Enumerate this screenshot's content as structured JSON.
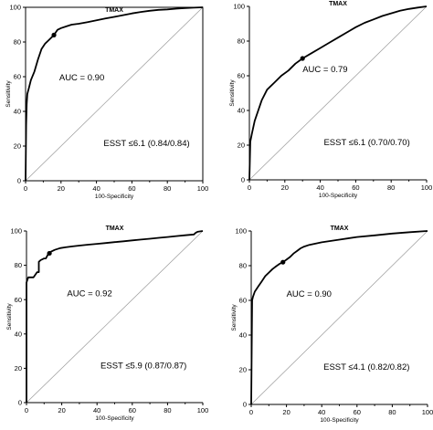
{
  "chart_data": [
    {
      "type": "line",
      "title": "TMAX",
      "xlabel": "100-Specificity",
      "ylabel": "Sensitivity",
      "xlim": [
        0,
        100
      ],
      "ylim": [
        0,
        100
      ],
      "xticks": [
        "0",
        "20",
        "40",
        "60",
        "80",
        "100"
      ],
      "yticks": [
        "0",
        "20",
        "40",
        "60",
        "80",
        "100"
      ],
      "reference_line": "diagonal",
      "annotations": [
        "AUC = 0.90",
        "ESST ≤6.1 (0.84/0.84)"
      ],
      "cutoff_point": {
        "x": 16,
        "y": 84
      },
      "series": [
        {
          "x": [
            0,
            0.3,
            0.6,
            1,
            1.5,
            2,
            3,
            5,
            7,
            9,
            11,
            13,
            15,
            16,
            18,
            20,
            23,
            26,
            30,
            35,
            40,
            45,
            50,
            55,
            60,
            65,
            70,
            75,
            80,
            85,
            90,
            95,
            100
          ],
          "y": [
            0,
            32,
            44,
            50,
            52,
            54,
            58,
            63,
            70,
            76,
            79,
            81,
            83,
            84,
            87,
            88,
            89,
            90,
            90.5,
            91.5,
            92.5,
            93.5,
            94.5,
            95.5,
            96.5,
            97.3,
            98,
            98.5,
            98.8,
            99.2,
            99.5,
            99.8,
            100
          ]
        }
      ]
    },
    {
      "type": "line",
      "title": "TMAX",
      "xlabel": "100-Specificity",
      "ylabel": "Sensitivity",
      "xlim": [
        0,
        100
      ],
      "ylim": [
        0,
        100
      ],
      "xticks": [
        "0",
        "20",
        "40",
        "60",
        "80",
        "100"
      ],
      "yticks": [
        "0",
        "20",
        "40",
        "60",
        "80",
        "100"
      ],
      "reference_line": "diagonal",
      "annotations": [
        "AUC = 0.79",
        "ESST ≤6.1 (0.70/0.70)"
      ],
      "cutoff_point": {
        "x": 30,
        "y": 70
      },
      "series": [
        {
          "x": [
            0,
            0.5,
            1.5,
            3,
            5,
            7,
            10,
            14,
            18,
            22,
            26,
            30,
            35,
            40,
            45,
            50,
            55,
            60,
            65,
            70,
            75,
            80,
            85,
            90,
            95,
            100
          ],
          "y": [
            0,
            22,
            27,
            34,
            40,
            46,
            52,
            56,
            60,
            63,
            67,
            70,
            73,
            76,
            79,
            82,
            85,
            88,
            90.5,
            92.5,
            94.5,
            96,
            97.5,
            98.5,
            99.3,
            100
          ]
        }
      ]
    },
    {
      "type": "line",
      "title": "TMAX",
      "xlabel": "100-Specificity",
      "ylabel": "Sensitivity",
      "xlim": [
        0,
        100
      ],
      "ylim": [
        0,
        100
      ],
      "xticks": [
        "0",
        "20",
        "40",
        "60",
        "80",
        "100"
      ],
      "yticks": [
        "0",
        "20",
        "40",
        "60",
        "80",
        "100"
      ],
      "reference_line": "diagonal",
      "annotations": [
        "AUC = 0.92",
        "ESST ≤5.9 (0.87/0.87)"
      ],
      "cutoff_point": {
        "x": 13,
        "y": 87
      },
      "series": [
        {
          "x": [
            0,
            0,
            1,
            4,
            6,
            7,
            7,
            8,
            10,
            11,
            12,
            13,
            14,
            16,
            19,
            22,
            26,
            30,
            35,
            40,
            45,
            50,
            55,
            60,
            65,
            70,
            75,
            80,
            85,
            90,
            95,
            96,
            97,
            100
          ],
          "y": [
            0,
            70,
            73,
            73,
            76,
            76,
            82,
            83,
            84,
            84,
            86,
            87,
            88,
            89,
            90,
            90.5,
            91,
            91.5,
            92,
            92.5,
            93,
            93.5,
            94,
            94.5,
            95,
            95.5,
            96,
            96.5,
            97,
            97.5,
            98,
            99,
            99.5,
            100
          ]
        }
      ]
    },
    {
      "type": "line",
      "title": "TMAX",
      "xlabel": "100-Specificity",
      "ylabel": "Sensitivity",
      "xlim": [
        0,
        100
      ],
      "ylim": [
        0,
        100
      ],
      "xticks": [
        "0",
        "20",
        "40",
        "60",
        "80",
        "100"
      ],
      "yticks": [
        "0",
        "20",
        "40",
        "60",
        "80",
        "100"
      ],
      "reference_line": "diagonal",
      "annotations": [
        "AUC = 0.90",
        "ESST ≤4.1 (0.82/0.82)"
      ],
      "cutoff_point": {
        "x": 18,
        "y": 82
      },
      "series": [
        {
          "x": [
            0,
            0.5,
            1,
            2,
            4,
            6,
            8,
            10,
            12,
            14,
            16,
            18,
            20,
            22,
            24,
            26,
            28,
            30,
            33,
            40,
            50,
            60,
            70,
            80,
            90,
            100
          ],
          "y": [
            0,
            60,
            62,
            65,
            68,
            71,
            74,
            76,
            78,
            79.5,
            81,
            82,
            83.5,
            85,
            87,
            88.5,
            90,
            91,
            92,
            93.5,
            95,
            96.5,
            97.5,
            98.5,
            99.3,
            100
          ]
        }
      ]
    }
  ]
}
